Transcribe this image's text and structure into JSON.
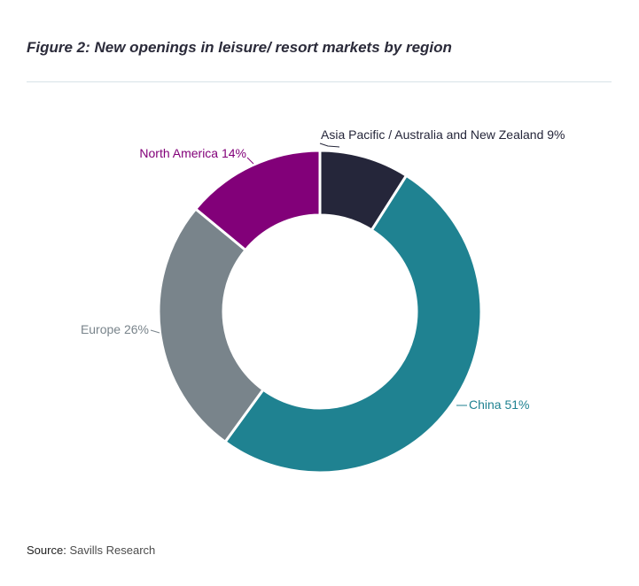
{
  "figure": {
    "title": "Figure 2: New openings in leisure/ resort markets by region"
  },
  "source": {
    "label": "Source:",
    "text": "Savills Research"
  },
  "chart_data": {
    "type": "pie",
    "donut": true,
    "unit": "%",
    "categories": [
      "Asia Pacific / Australia and New Zealand",
      "China",
      "Europe",
      "North America"
    ],
    "values": [
      9,
      51,
      26,
      14
    ],
    "labels": [
      "Asia Pacific / Australia and New Zealand 9%",
      "China 51%",
      "Europe 26%",
      "North America 14%"
    ],
    "colors": [
      "#25263a",
      "#1f8291",
      "#79848b",
      "#820079"
    ],
    "label_colors": [
      "#25263a",
      "#1f8291",
      "#79848b",
      "#820079"
    ],
    "legend": "none"
  }
}
